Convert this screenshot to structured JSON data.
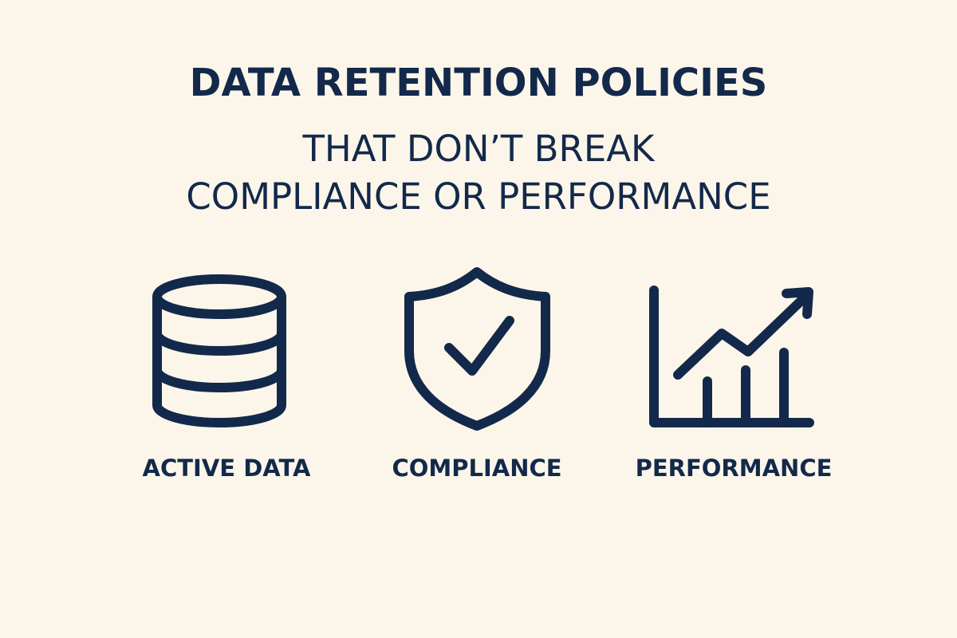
{
  "header": {
    "title": "DATA RETENTION POLICIES",
    "subtitle_lines": [
      "THAT DON’T BREAK",
      "COMPLIANCE OR PERFORMANCE"
    ]
  },
  "items": [
    {
      "label": "ACTIVE DATA"
    },
    {
      "label": "COMPLIANCE"
    },
    {
      "label": "PERFORMANCE"
    }
  ]
}
